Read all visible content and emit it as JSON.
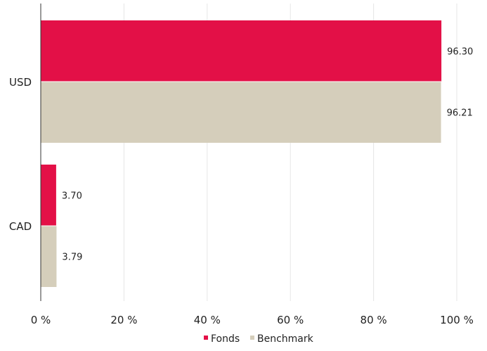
{
  "chart_data": {
    "type": "bar",
    "orientation": "horizontal",
    "categories": [
      "USD",
      "CAD"
    ],
    "series": [
      {
        "name": "Fonds",
        "values": [
          96.3,
          3.7
        ],
        "labels": [
          "96.30",
          "3.70"
        ],
        "color": "#e31047"
      },
      {
        "name": "Benchmark",
        "values": [
          96.21,
          3.79
        ],
        "labels": [
          "96.21",
          "3.79"
        ],
        "color": "#d5cebb"
      }
    ],
    "xlim": [
      0,
      100
    ],
    "x_ticks": [
      0,
      20,
      40,
      60,
      80,
      100
    ],
    "x_tick_labels": [
      "0 %",
      "20 %",
      "40 %",
      "60 %",
      "80 %",
      "100 %"
    ],
    "grid": true,
    "gridline_color": "#e6e6e6",
    "axis_color": "#333333",
    "legend_position": "bottom-center"
  }
}
